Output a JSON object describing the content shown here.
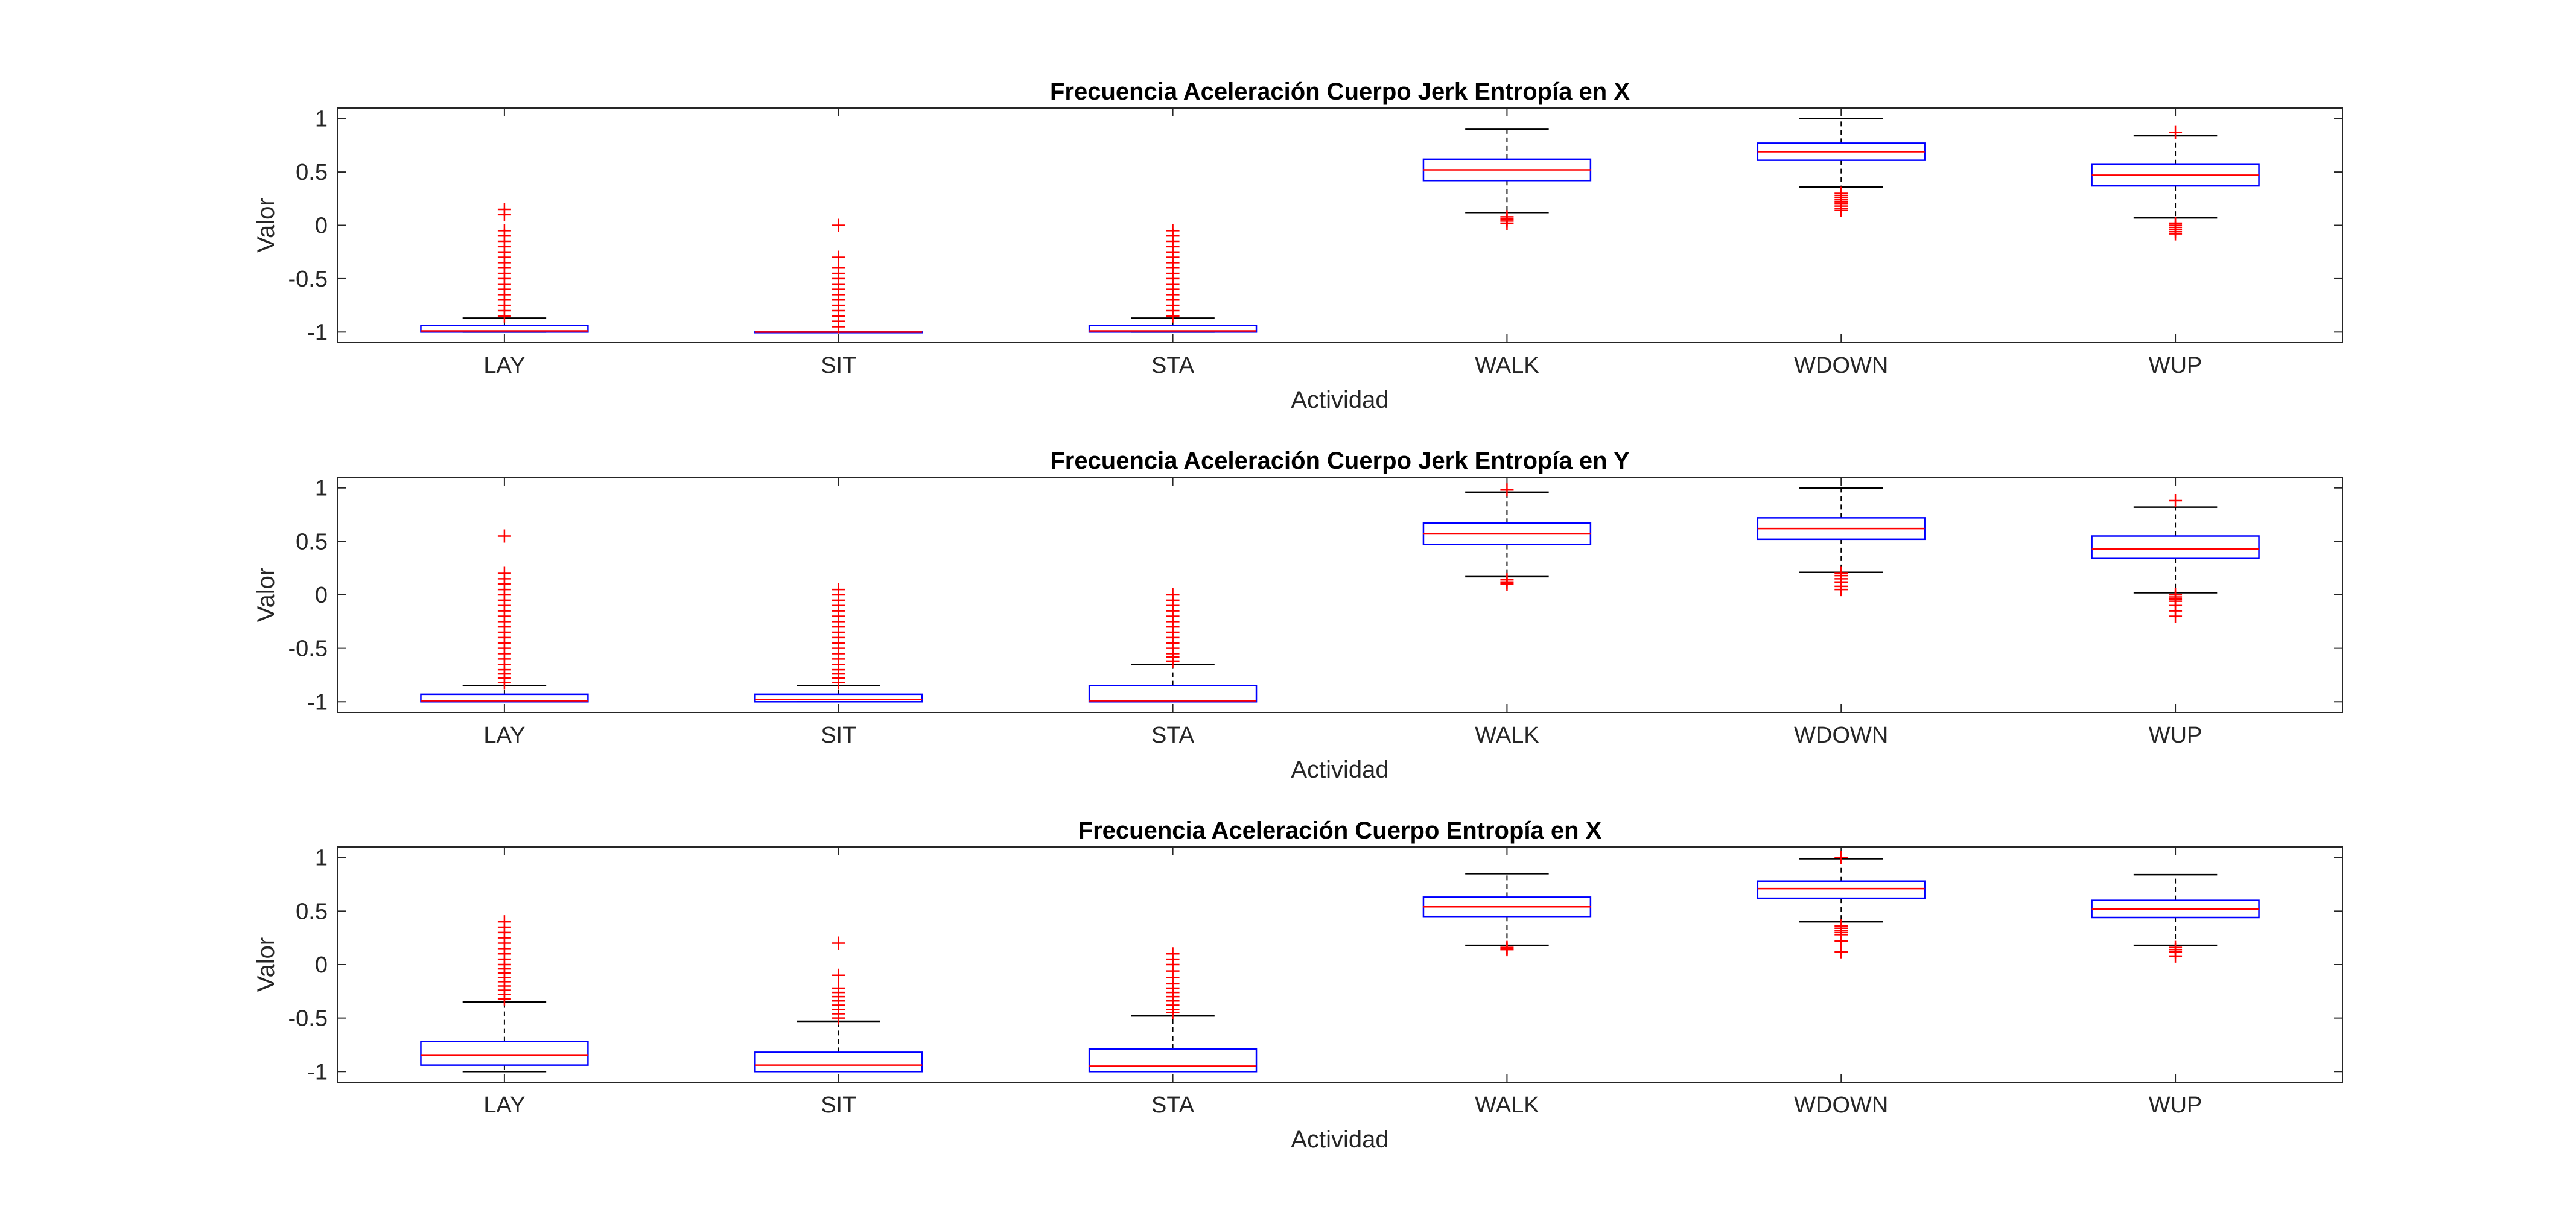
{
  "chart_data": [
    {
      "type": "boxplot",
      "title": "Frecuencia Aceleración Cuerpo Jerk Entropía en X",
      "xlabel": "Actividad",
      "ylabel": "Valor",
      "ylim": [
        -1.1,
        1.1
      ],
      "yticks": [
        -1,
        -0.5,
        0,
        0.5,
        1
      ],
      "ytick_labels": [
        "-1",
        "-0.5",
        "0",
        "0.5",
        "1"
      ],
      "categories": [
        "LAY",
        "SIT",
        "STA",
        "WALK",
        "WDOWN",
        "WUP"
      ],
      "boxes": [
        {
          "category": "LAY",
          "whisker_low": -1.0,
          "q1": -1.0,
          "median": -0.99,
          "q3": -0.94,
          "whisker_high": -0.87,
          "outliers": [
            -0.85,
            -0.8,
            -0.75,
            -0.7,
            -0.65,
            -0.6,
            -0.55,
            -0.5,
            -0.45,
            -0.4,
            -0.35,
            -0.3,
            -0.25,
            -0.2,
            -0.15,
            -0.1,
            -0.05,
            0.1,
            0.15
          ]
        },
        {
          "category": "SIT",
          "whisker_low": -1.0,
          "q1": -1.0,
          "median": -1.0,
          "q3": -1.0,
          "whisker_high": -1.0,
          "outliers": [
            -0.95,
            -0.9,
            -0.85,
            -0.8,
            -0.75,
            -0.7,
            -0.65,
            -0.6,
            -0.55,
            -0.5,
            -0.45,
            -0.4,
            -0.3,
            0.0
          ]
        },
        {
          "category": "STA",
          "whisker_low": -1.0,
          "q1": -1.0,
          "median": -0.99,
          "q3": -0.94,
          "whisker_high": -0.87,
          "outliers": [
            -0.85,
            -0.8,
            -0.75,
            -0.7,
            -0.65,
            -0.6,
            -0.55,
            -0.5,
            -0.45,
            -0.4,
            -0.35,
            -0.3,
            -0.25,
            -0.2,
            -0.15,
            -0.1,
            -0.05
          ]
        },
        {
          "category": "WALK",
          "whisker_low": 0.12,
          "q1": 0.42,
          "median": 0.52,
          "q3": 0.62,
          "whisker_high": 0.9,
          "outliers": [
            0.08,
            0.06,
            0.04,
            0.02
          ]
        },
        {
          "category": "WDOWN",
          "whisker_low": 0.36,
          "q1": 0.61,
          "median": 0.69,
          "q3": 0.77,
          "whisker_high": 1.0,
          "outliers": [
            0.3,
            0.28,
            0.26,
            0.24,
            0.22,
            0.2,
            0.18,
            0.16,
            0.14
          ]
        },
        {
          "category": "WUP",
          "whisker_low": 0.07,
          "q1": 0.37,
          "median": 0.47,
          "q3": 0.57,
          "whisker_high": 0.84,
          "outliers": [
            0.87,
            0.02,
            0.0,
            -0.02,
            -0.04,
            -0.06,
            -0.08
          ]
        }
      ]
    },
    {
      "type": "boxplot",
      "title": "Frecuencia Aceleración Cuerpo Jerk Entropía en Y",
      "xlabel": "Actividad",
      "ylabel": "Valor",
      "ylim": [
        -1.1,
        1.1
      ],
      "yticks": [
        -1,
        -0.5,
        0,
        0.5,
        1
      ],
      "ytick_labels": [
        "-1",
        "-0.5",
        "0",
        "0.5",
        "1"
      ],
      "categories": [
        "LAY",
        "SIT",
        "STA",
        "WALK",
        "WDOWN",
        "WUP"
      ],
      "boxes": [
        {
          "category": "LAY",
          "whisker_low": -1.0,
          "q1": -1.0,
          "median": -0.99,
          "q3": -0.93,
          "whisker_high": -0.85,
          "outliers": [
            -0.82,
            -0.78,
            -0.74,
            -0.7,
            -0.65,
            -0.6,
            -0.55,
            -0.5,
            -0.45,
            -0.4,
            -0.35,
            -0.3,
            -0.25,
            -0.2,
            -0.15,
            -0.1,
            -0.05,
            0.0,
            0.05,
            0.1,
            0.15,
            0.2,
            0.55
          ]
        },
        {
          "category": "SIT",
          "whisker_low": -1.0,
          "q1": -1.0,
          "median": -0.98,
          "q3": -0.93,
          "whisker_high": -0.85,
          "outliers": [
            -0.82,
            -0.78,
            -0.74,
            -0.7,
            -0.65,
            -0.6,
            -0.55,
            -0.5,
            -0.45,
            -0.4,
            -0.35,
            -0.3,
            -0.25,
            -0.2,
            -0.15,
            -0.1,
            -0.05,
            0.0,
            0.05
          ]
        },
        {
          "category": "STA",
          "whisker_low": -1.0,
          "q1": -1.0,
          "median": -0.99,
          "q3": -0.85,
          "whisker_high": -0.65,
          "outliers": [
            -0.62,
            -0.58,
            -0.55,
            -0.5,
            -0.45,
            -0.4,
            -0.35,
            -0.3,
            -0.25,
            -0.2,
            -0.15,
            -0.1,
            -0.05,
            0.0
          ]
        },
        {
          "category": "WALK",
          "whisker_low": 0.17,
          "q1": 0.47,
          "median": 0.57,
          "q3": 0.67,
          "whisker_high": 0.96,
          "outliers": [
            0.98,
            0.14,
            0.12,
            0.1
          ]
        },
        {
          "category": "WDOWN",
          "whisker_low": 0.21,
          "q1": 0.52,
          "median": 0.62,
          "q3": 0.72,
          "whisker_high": 1.0,
          "outliers": [
            0.2,
            0.18,
            0.15,
            0.12,
            0.08,
            0.05
          ]
        },
        {
          "category": "WUP",
          "whisker_low": 0.02,
          "q1": 0.34,
          "median": 0.43,
          "q3": 0.55,
          "whisker_high": 0.82,
          "outliers": [
            0.88,
            0.0,
            -0.02,
            -0.04,
            -0.06,
            -0.1,
            -0.15,
            -0.2
          ]
        }
      ]
    },
    {
      "type": "boxplot",
      "title": "Frecuencia Aceleración Cuerpo Entropía en X",
      "xlabel": "Actividad",
      "ylabel": "Valor",
      "ylim": [
        -1.1,
        1.1
      ],
      "yticks": [
        -1,
        -0.5,
        0,
        0.5,
        1
      ],
      "ytick_labels": [
        "-1",
        "-0.5",
        "0",
        "0.5",
        "1"
      ],
      "categories": [
        "LAY",
        "SIT",
        "STA",
        "WALK",
        "WDOWN",
        "WUP"
      ],
      "boxes": [
        {
          "category": "LAY",
          "whisker_low": -1.0,
          "q1": -0.94,
          "median": -0.85,
          "q3": -0.72,
          "whisker_high": -0.35,
          "outliers": [
            -0.32,
            -0.28,
            -0.24,
            -0.2,
            -0.16,
            -0.12,
            -0.08,
            -0.04,
            0.0,
            0.05,
            0.1,
            0.15,
            0.2,
            0.25,
            0.3,
            0.35,
            0.4
          ]
        },
        {
          "category": "SIT",
          "whisker_low": -1.0,
          "q1": -1.0,
          "median": -0.94,
          "q3": -0.82,
          "whisker_high": -0.53,
          "outliers": [
            -0.5,
            -0.46,
            -0.42,
            -0.38,
            -0.34,
            -0.3,
            -0.26,
            -0.22,
            -0.1,
            0.2
          ]
        },
        {
          "category": "STA",
          "whisker_low": -1.0,
          "q1": -1.0,
          "median": -0.95,
          "q3": -0.79,
          "whisker_high": -0.48,
          "outliers": [
            -0.45,
            -0.42,
            -0.38,
            -0.34,
            -0.3,
            -0.26,
            -0.22,
            -0.18,
            -0.12,
            -0.06,
            0.0,
            0.05,
            0.1
          ]
        },
        {
          "category": "WALK",
          "whisker_low": 0.18,
          "q1": 0.45,
          "median": 0.54,
          "q3": 0.63,
          "whisker_high": 0.85,
          "outliers": [
            0.16,
            0.15,
            0.14
          ]
        },
        {
          "category": "WDOWN",
          "whisker_low": 0.4,
          "q1": 0.62,
          "median": 0.71,
          "q3": 0.78,
          "whisker_high": 0.99,
          "outliers": [
            1.0,
            0.36,
            0.34,
            0.32,
            0.3,
            0.28,
            0.22,
            0.12
          ]
        },
        {
          "category": "WUP",
          "whisker_low": 0.18,
          "q1": 0.44,
          "median": 0.52,
          "q3": 0.6,
          "whisker_high": 0.84,
          "outliers": [
            0.16,
            0.14,
            0.12,
            0.08
          ]
        }
      ]
    }
  ]
}
